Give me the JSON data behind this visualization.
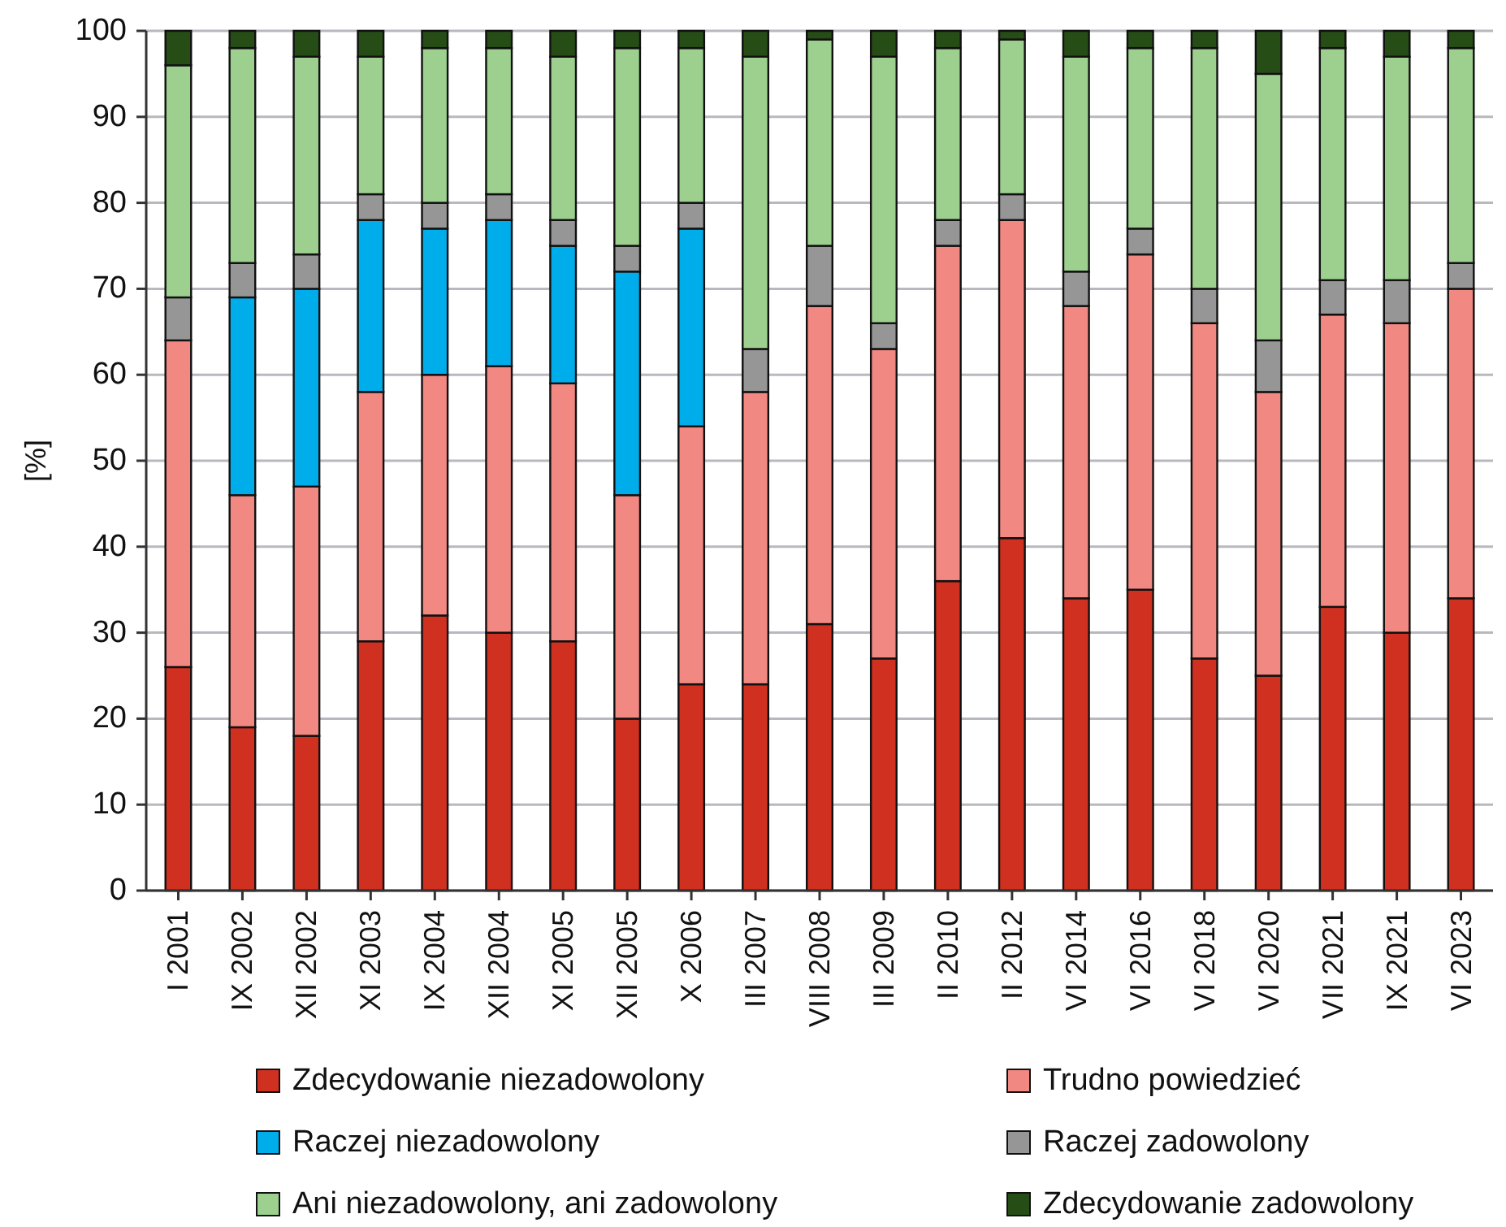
{
  "chart_data": {
    "type": "bar",
    "stacked": true,
    "ylabel": "[%]",
    "ylim": [
      0,
      100
    ],
    "yticks": [
      0,
      10,
      20,
      30,
      40,
      50,
      60,
      70,
      80,
      90,
      100
    ],
    "grid": "y",
    "legend": "bottom",
    "categories": [
      "I 2001",
      "IX 2002",
      "XII 2002",
      "XI 2003",
      "IX 2004",
      "XII 2004",
      "XI 2005",
      "XII 2005",
      "X 2006",
      "III 2007",
      "VIII 2008",
      "III 2009",
      "II 2010",
      "II 2012",
      "VI 2014",
      "VI 2016",
      "VI 2018",
      "VI 2020",
      "VII 2021",
      "IX 2021",
      "VI 2023"
    ],
    "series": [
      {
        "name": "Zdecydowanie niezadowolony",
        "color": "#d03020",
        "values": [
          26,
          19,
          18,
          29,
          32,
          30,
          29,
          20,
          24,
          24,
          31,
          27,
          36,
          41,
          34,
          35,
          27,
          25,
          33,
          30,
          34
        ]
      },
      {
        "name": "Trudno powiedzieć",
        "color": "#f28882",
        "values": [
          38,
          27,
          29,
          29,
          28,
          31,
          30,
          26,
          30,
          34,
          37,
          36,
          39,
          37,
          34,
          39,
          39,
          33,
          34,
          36,
          36
        ]
      },
      {
        "name": "Raczej niezadowolony",
        "color": "#00adeb",
        "values": [
          null,
          23,
          23,
          20,
          17,
          17,
          16,
          26,
          23,
          null,
          null,
          null,
          null,
          null,
          null,
          null,
          null,
          null,
          null,
          null,
          null
        ]
      },
      {
        "name": "Raczej zadowolony",
        "color": "#969696",
        "values": [
          5,
          4,
          4,
          3,
          3,
          3,
          3,
          3,
          3,
          5,
          7,
          3,
          3,
          3,
          4,
          3,
          4,
          6,
          4,
          5,
          3
        ]
      },
      {
        "name": "Ani niezadowolony, ani zadowolony",
        "color": "#9dd08f",
        "values": [
          27,
          25,
          23,
          16,
          18,
          17,
          19,
          23,
          18,
          34,
          24,
          31,
          20,
          18,
          25,
          21,
          28,
          31,
          27,
          26,
          25
        ]
      },
      {
        "name": "Zdecydowanie zadowolony",
        "color": "#274d17",
        "values": [
          4,
          2,
          3,
          3,
          2,
          2,
          3,
          2,
          2,
          3,
          1,
          3,
          2,
          1,
          3,
          2,
          2,
          5,
          2,
          3,
          2
        ]
      }
    ]
  }
}
